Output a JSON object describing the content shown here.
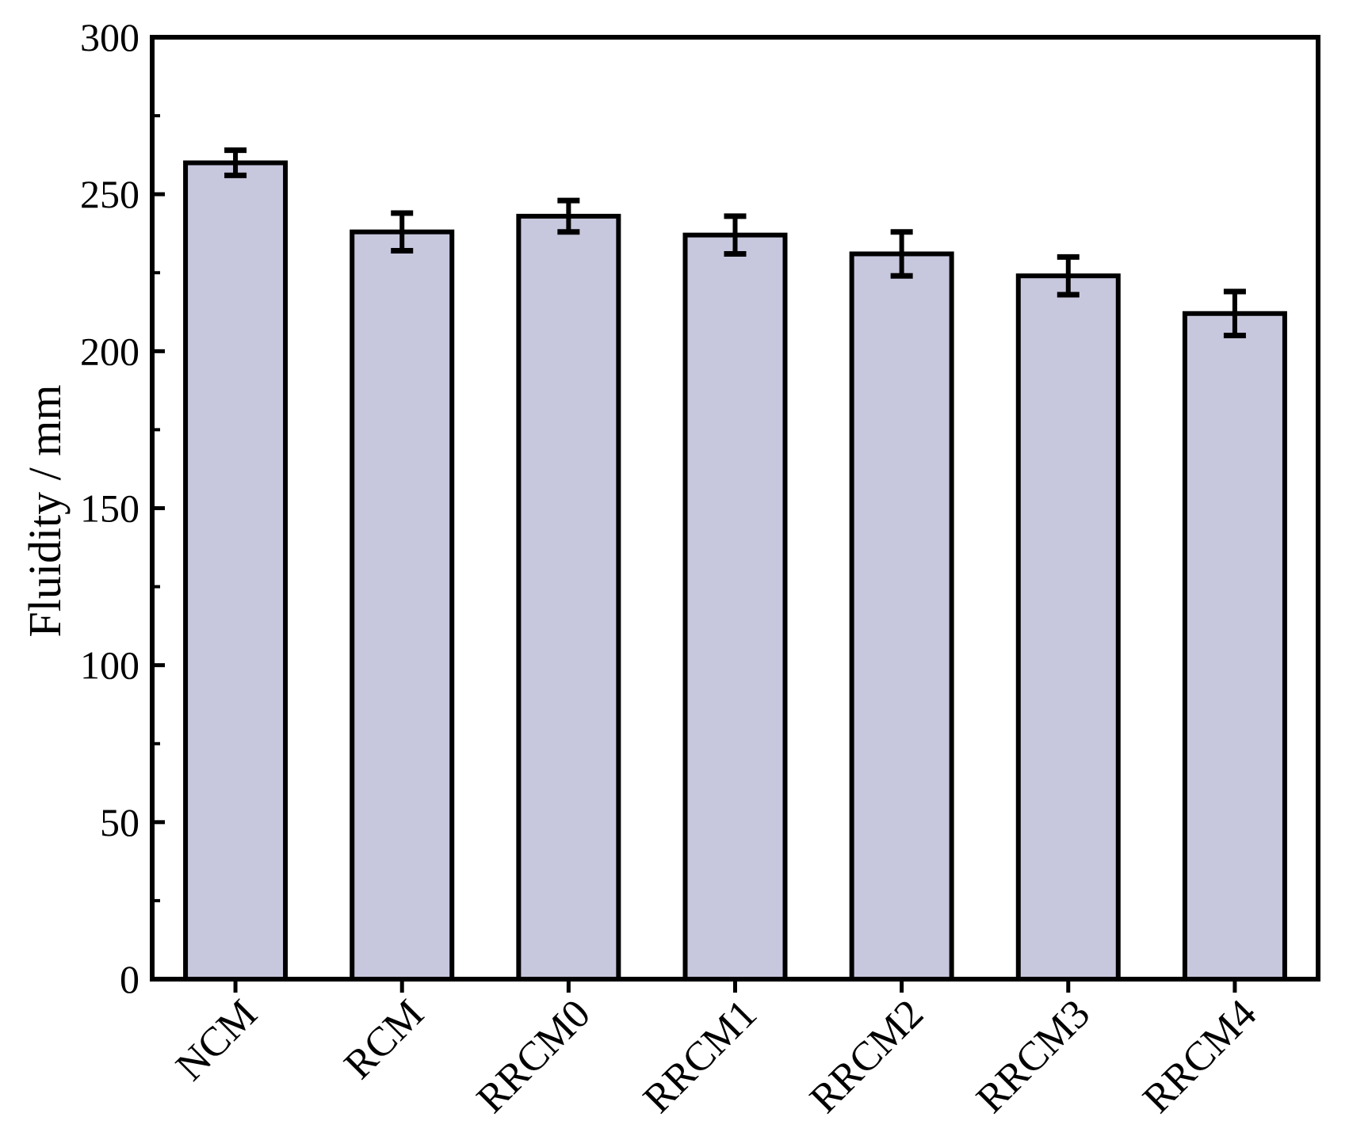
{
  "chart_data": {
    "type": "bar",
    "title": "",
    "categories": [
      "NCM",
      "RCM",
      "RRCM0",
      "RRCM1",
      "RRCM2",
      "RRCM3",
      "RRCM4"
    ],
    "values": [
      260,
      238,
      243,
      237,
      231,
      224,
      212
    ],
    "errors": [
      4,
      6,
      5,
      6,
      7,
      6,
      7
    ],
    "xlabel": "",
    "ylabel": "Fluidity / mm",
    "ylim": [
      0,
      300
    ],
    "ytick_step": 50,
    "yminor_step": 25,
    "ytick_labels": [
      "0",
      "50",
      "100",
      "150",
      "200",
      "250",
      "300"
    ],
    "grid": false,
    "legend": false,
    "frame": "full-box",
    "x_label_rotation_deg": -45,
    "colors": {
      "bar_fill": "#c7c7de",
      "bar_stroke": "#000000",
      "axis": "#000000",
      "error_bar": "#000000",
      "background": "#ffffff",
      "text": "#000000"
    }
  }
}
